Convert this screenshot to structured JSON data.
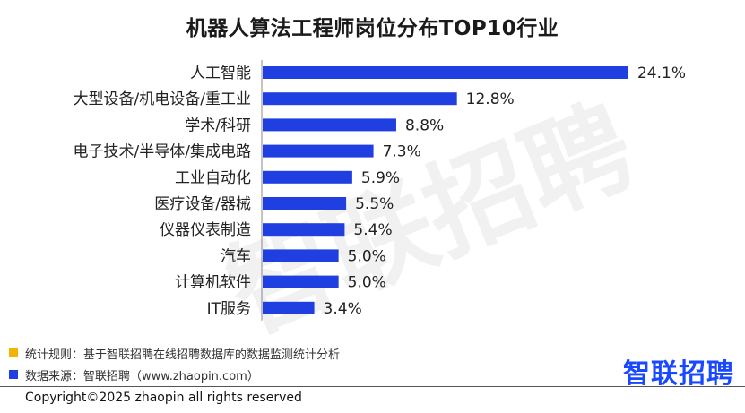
{
  "chart_data": {
    "type": "bar",
    "orientation": "horizontal",
    "title": "机器人算法工程师岗位分布TOP10行业",
    "categories": [
      "人工智能",
      "大型设备/机电设备/重工业",
      "学术/科研",
      "电子技术/半导体/集成电路",
      "工业自动化",
      "医疗设备/器械",
      "仪器仪表制造",
      "汽车",
      "计算机软件",
      "IT服务"
    ],
    "values": [
      24.1,
      12.8,
      8.8,
      7.3,
      5.9,
      5.5,
      5.4,
      5.0,
      5.0,
      3.4
    ],
    "value_labels": [
      "24.1%",
      "12.8%",
      "8.8%",
      "7.3%",
      "5.9%",
      "5.5%",
      "5.4%",
      "5.0%",
      "5.0%",
      "3.4%"
    ],
    "xlim": [
      0,
      28
    ],
    "grid": false,
    "bar_color": "#1f3fe0"
  },
  "notes": [
    {
      "text": "统计规则：基于智联招聘在线招聘数据库的数据监测统计分析",
      "color": "#f2b400"
    },
    {
      "text": "数据来源：智联招聘（www.zhaopin.com）",
      "color": "#1f3fe0"
    }
  ],
  "brand": {
    "logo": "智联招聘",
    "watermark": "智联招聘",
    "color": "#1848ff"
  },
  "copyright": "Copyright©2025 zhaopin all rights reserved"
}
